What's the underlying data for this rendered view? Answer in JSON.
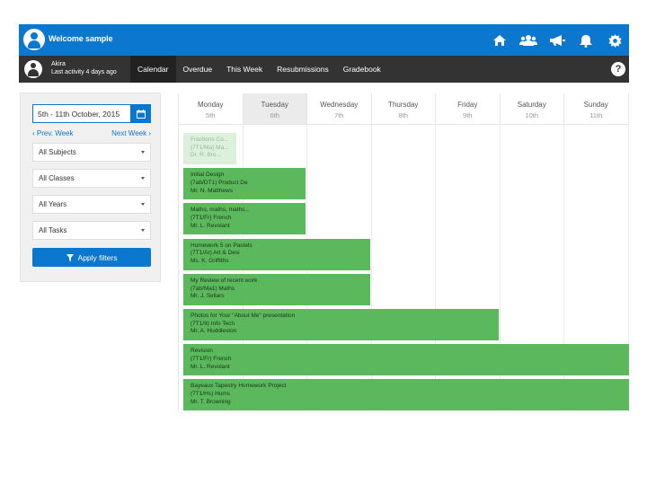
{
  "header": {
    "welcome": "Welcome sample"
  },
  "nav": {
    "user_name": "Akira",
    "user_activity": "Last activity 4 days ago",
    "tabs": [
      {
        "label": "Calendar",
        "active": true
      },
      {
        "label": "Overdue",
        "active": false
      },
      {
        "label": "This Week",
        "active": false
      },
      {
        "label": "Resubmissions",
        "active": false
      },
      {
        "label": "Gradebook",
        "active": false
      }
    ],
    "help": "?"
  },
  "filters": {
    "date_range": "5th - 11th October, 2015",
    "prev_week": "‹ Prev. Week",
    "next_week": "Next Week ›",
    "subjects": "All Subjects",
    "classes": "All Classes",
    "years": "All Years",
    "tasks": "All Tasks",
    "apply": "Apply filters"
  },
  "calendar": {
    "days": [
      {
        "name": "Monday",
        "date": "5th"
      },
      {
        "name": "Tuesday",
        "date": "6th"
      },
      {
        "name": "Wednesday",
        "date": "7th"
      },
      {
        "name": "Thursday",
        "date": "8th"
      },
      {
        "name": "Friday",
        "date": "9th"
      },
      {
        "name": "Saturday",
        "date": "10th"
      },
      {
        "name": "Sunday",
        "date": "11th"
      }
    ],
    "today_index": 1,
    "events": [
      {
        "title": "Fractions Co...",
        "class": "(7T1/Ma) Ma...",
        "teacher": "Dr. R. Bro...",
        "span_days": 1,
        "faded": true
      },
      {
        "title": "Initial Design",
        "class": "(7ab/DT1) Product De",
        "teacher": "Mr. N. Matthews",
        "span_days": 2,
        "faded": false
      },
      {
        "title": "Maths, maths, maths...",
        "class": "(7T1/Fr) French",
        "teacher": "Mr. L. Revolant",
        "span_days": 2,
        "faded": false
      },
      {
        "title": "Homework 5 on Pastels",
        "class": "(7T1/Ar) Art & Desi",
        "teacher": "Ms. K. Griffiths",
        "span_days": 3,
        "faded": false
      },
      {
        "title": "My Review of recent work",
        "class": "(7ab/Ma1) Maths",
        "teacher": "Mr. J. Sellars",
        "span_days": 3,
        "faded": false
      },
      {
        "title": "Photos for Your \"About Me\" presentation",
        "class": "(7T1/It) Info Tech",
        "teacher": "Mr. A. Huddleston",
        "span_days": 5,
        "faded": false
      },
      {
        "title": "Revision",
        "class": "(7T1/Fr) French",
        "teacher": "Mr. L. Revolant",
        "span_days": 7,
        "faded": false
      },
      {
        "title": "Bayeaux Tapestry Homework Project",
        "class": "(7T1/Hs) Hums",
        "teacher": "Mr. T. Browning",
        "span_days": 7,
        "faded": false
      }
    ]
  },
  "colors": {
    "primary": "#0b77cf",
    "nav": "#333333",
    "event": "#5cb85c",
    "event_faded": "#dcf0dc"
  }
}
